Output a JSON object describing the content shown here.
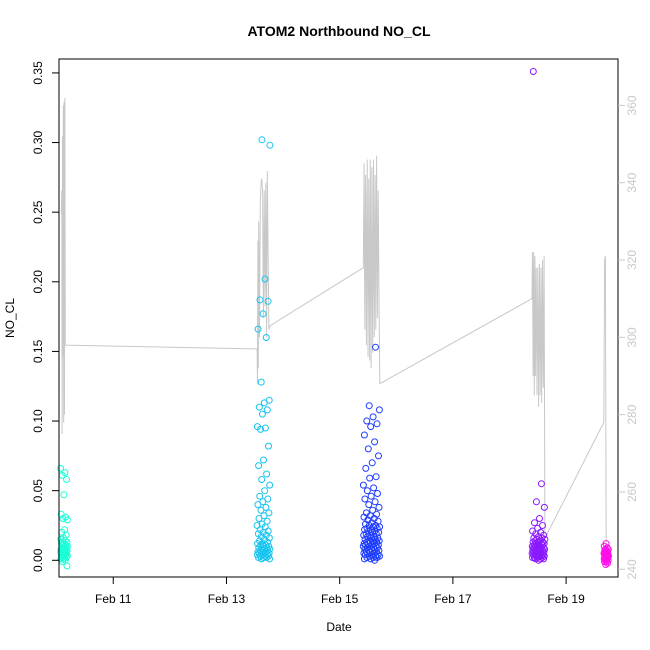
{
  "chart_data": {
    "type": "scatter",
    "title": "ATOM2 Northbound NO_CL",
    "xlabel": "Date",
    "ylabel": "NO_CL",
    "x_axis": {
      "kind": "date",
      "range": [
        "Feb 10 01:00",
        "Feb 19 22:00"
      ],
      "ticks": [
        "Feb 11",
        "Feb 13",
        "Feb 15",
        "Feb 17",
        "Feb 19"
      ]
    },
    "y_axis": {
      "range": [
        -0.012,
        0.36
      ],
      "ticks": [
        "0.00",
        "0.05",
        "0.10",
        "0.15",
        "0.20",
        "0.25",
        "0.30",
        "0.35"
      ]
    },
    "y2_axis": {
      "range": [
        238,
        372
      ],
      "ticks": [
        "240",
        "260",
        "280",
        "300",
        "320",
        "340",
        "360"
      ],
      "color": "#c8c8c8"
    },
    "grid": false,
    "legend": "none",
    "marker": "open-circle",
    "point_colors": {
      "flight1": "#1affd5",
      "flight2": "#19c4f0",
      "flight3": "#1f3dff",
      "flight4": "#8b19ff",
      "flight5": "#ff0fea"
    },
    "line_series": {
      "axis": "y2",
      "color": "#c8c8c8",
      "points": [
        [
          "Feb 10 02:00",
          332
        ],
        [
          "Feb 10 02:10",
          338
        ],
        [
          "Feb 10 02:20",
          275
        ],
        [
          "Feb 10 02:30",
          352
        ],
        [
          "Feb 10 02:40",
          295
        ],
        [
          "Feb 10 02:50",
          360
        ],
        [
          "Feb 10 03:00",
          278
        ],
        [
          "Feb 10 03:10",
          361
        ],
        [
          "Feb 10 03:20",
          280
        ],
        [
          "Feb 10 03:30",
          362
        ],
        [
          "Feb 10 03:40",
          298
        ],
        [
          "Feb 13 13:00",
          297
        ],
        [
          "Feb 13 13:10",
          288
        ],
        [
          "Feb 13 13:20",
          325
        ],
        [
          "Feb 13 13:30",
          292
        ],
        [
          "Feb 13 13:40",
          330
        ],
        [
          "Feb 13 14:00",
          300
        ],
        [
          "Feb 13 14:20",
          335
        ],
        [
          "Feb 13 14:40",
          340
        ],
        [
          "Feb 13 15:00",
          341
        ],
        [
          "Feb 13 15:20",
          338
        ],
        [
          "Feb 13 15:40",
          305
        ],
        [
          "Feb 13 16:00",
          338
        ],
        [
          "Feb 13 16:20",
          308
        ],
        [
          "Feb 13 16:40",
          340
        ],
        [
          "Feb 13 17:00",
          300
        ],
        [
          "Feb 13 17:20",
          343
        ],
        [
          "Feb 13 18:00",
          302
        ],
        [
          "Feb 13 18:30",
          303
        ],
        [
          "Feb 15 10:00",
          318
        ],
        [
          "Feb 15 10:20",
          345
        ],
        [
          "Feb 15 10:40",
          302
        ],
        [
          "Feb 15 11:00",
          342
        ],
        [
          "Feb 15 11:20",
          298
        ],
        [
          "Feb 15 11:40",
          346
        ],
        [
          "Feb 15 12:00",
          295
        ],
        [
          "Feb 15 12:20",
          341
        ],
        [
          "Feb 15 12:40",
          294
        ],
        [
          "Feb 15 13:00",
          346
        ],
        [
          "Feb 15 13:20",
          292
        ],
        [
          "Feb 15 13:40",
          344
        ],
        [
          "Feb 15 14:00",
          296
        ],
        [
          "Feb 15 14:20",
          346
        ],
        [
          "Feb 15 14:40",
          300
        ],
        [
          "Feb 15 15:00",
          342
        ],
        [
          "Feb 15 15:20",
          302
        ],
        [
          "Feb 15 15:40",
          347
        ],
        [
          "Feb 15 16:00",
          305
        ],
        [
          "Feb 15 16:20",
          338
        ],
        [
          "Feb 15 16:40",
          310
        ],
        [
          "Feb 15 17:00",
          288
        ],
        [
          "Feb 18 09:30",
          310
        ],
        [
          "Feb 18 09:45",
          322
        ],
        [
          "Feb 18 10:00",
          290
        ],
        [
          "Feb 18 10:15",
          322
        ],
        [
          "Feb 18 10:30",
          285
        ],
        [
          "Feb 18 10:45",
          321
        ],
        [
          "Feb 18 11:00",
          290
        ],
        [
          "Feb 18 11:20",
          318
        ],
        [
          "Feb 18 11:40",
          285
        ],
        [
          "Feb 18 12:00",
          318
        ],
        [
          "Feb 18 12:20",
          282
        ],
        [
          "Feb 18 12:40",
          319
        ],
        [
          "Feb 18 13:00",
          285
        ],
        [
          "Feb 18 13:20",
          318
        ],
        [
          "Feb 18 13:40",
          283
        ],
        [
          "Feb 18 14:00",
          320
        ],
        [
          "Feb 18 14:20",
          287
        ],
        [
          "Feb 18 14:40",
          321
        ],
        [
          "Feb 18 15:00",
          248
        ],
        [
          "Feb 19 16:00",
          278
        ],
        [
          "Feb 19 16:20",
          320
        ],
        [
          "Feb 19 16:40",
          321
        ],
        [
          "Feb 19 17:00",
          242
        ]
      ]
    },
    "scatter_series": [
      {
        "color_key": "flight1",
        "x_range": [
          "Feb 10 01:40",
          "Feb 10 04:40"
        ],
        "y_values": [
          0.066,
          0.063,
          0.061,
          0.058,
          0.047,
          0.033,
          0.031,
          0.03,
          0.029,
          0.022,
          0.02,
          0.018,
          0.016,
          0.015,
          0.014,
          0.013,
          0.013,
          0.012,
          0.012,
          0.011,
          0.011,
          0.01,
          0.01,
          0.009,
          0.009,
          0.009,
          0.008,
          0.008,
          0.008,
          0.007,
          0.007,
          0.007,
          0.006,
          0.006,
          0.006,
          0.005,
          0.005,
          0.005,
          0.004,
          0.004,
          0.004,
          0.003,
          0.003,
          0.003,
          0.002,
          0.002,
          0.001,
          0.001,
          0.0,
          -0.001,
          -0.004
        ]
      },
      {
        "color_key": "flight2",
        "x_range": [
          "Feb 13 13:00",
          "Feb 13 18:30"
        ],
        "y_values": [
          0.302,
          0.298,
          0.202,
          0.187,
          0.186,
          0.177,
          0.166,
          0.16,
          0.128,
          0.115,
          0.113,
          0.11,
          0.108,
          0.105,
          0.096,
          0.095,
          0.094,
          0.082,
          0.072,
          0.068,
          0.062,
          0.058,
          0.054,
          0.05,
          0.046,
          0.044,
          0.042,
          0.04,
          0.038,
          0.036,
          0.034,
          0.032,
          0.03,
          0.028,
          0.026,
          0.025,
          0.024,
          0.022,
          0.021,
          0.02,
          0.019,
          0.018,
          0.017,
          0.016,
          0.015,
          0.014,
          0.013,
          0.012,
          0.012,
          0.011,
          0.011,
          0.01,
          0.01,
          0.009,
          0.009,
          0.008,
          0.008,
          0.008,
          0.007,
          0.007,
          0.007,
          0.006,
          0.006,
          0.006,
          0.005,
          0.005,
          0.005,
          0.004,
          0.004,
          0.004,
          0.003,
          0.003,
          0.003,
          0.002,
          0.002,
          0.002,
          0.001,
          0.001
        ]
      },
      {
        "color_key": "flight3",
        "x_range": [
          "Feb 15 10:00",
          "Feb 15 17:00"
        ],
        "y_values": [
          0.153,
          0.111,
          0.108,
          0.103,
          0.1,
          0.098,
          0.096,
          0.09,
          0.085,
          0.08,
          0.075,
          0.07,
          0.066,
          0.06,
          0.059,
          0.054,
          0.052,
          0.05,
          0.048,
          0.046,
          0.044,
          0.042,
          0.04,
          0.038,
          0.036,
          0.034,
          0.033,
          0.032,
          0.031,
          0.03,
          0.029,
          0.028,
          0.027,
          0.026,
          0.025,
          0.025,
          0.024,
          0.024,
          0.023,
          0.023,
          0.022,
          0.022,
          0.021,
          0.021,
          0.02,
          0.02,
          0.019,
          0.019,
          0.018,
          0.018,
          0.017,
          0.017,
          0.016,
          0.016,
          0.015,
          0.015,
          0.014,
          0.014,
          0.014,
          0.013,
          0.013,
          0.013,
          0.012,
          0.012,
          0.012,
          0.011,
          0.011,
          0.011,
          0.01,
          0.01,
          0.01,
          0.009,
          0.009,
          0.009,
          0.008,
          0.008,
          0.008,
          0.007,
          0.007,
          0.007,
          0.006,
          0.006,
          0.006,
          0.005,
          0.005,
          0.005,
          0.004,
          0.004,
          0.004,
          0.003,
          0.003,
          0.003,
          0.002,
          0.002,
          0.002,
          0.001,
          0.001,
          0.0
        ]
      },
      {
        "color_key": "flight4",
        "x_range": [
          "Feb 18 09:30",
          "Feb 18 15:00"
        ],
        "y_values": [
          0.351,
          0.055,
          0.042,
          0.038,
          0.03,
          0.027,
          0.025,
          0.023,
          0.021,
          0.02,
          0.019,
          0.018,
          0.017,
          0.016,
          0.016,
          0.015,
          0.015,
          0.014,
          0.014,
          0.013,
          0.013,
          0.013,
          0.012,
          0.012,
          0.012,
          0.011,
          0.011,
          0.011,
          0.01,
          0.01,
          0.01,
          0.01,
          0.009,
          0.009,
          0.009,
          0.009,
          0.008,
          0.008,
          0.008,
          0.008,
          0.007,
          0.007,
          0.007,
          0.007,
          0.006,
          0.006,
          0.006,
          0.006,
          0.005,
          0.005,
          0.005,
          0.005,
          0.004,
          0.004,
          0.004,
          0.004,
          0.003,
          0.003,
          0.003,
          0.003,
          0.002,
          0.002,
          0.002,
          0.002,
          0.001,
          0.001,
          0.001,
          0.0
        ]
      },
      {
        "color_key": "flight5",
        "x_range": [
          "Feb 19 16:00",
          "Feb 19 18:00"
        ],
        "y_values": [
          0.012,
          0.01,
          0.009,
          0.008,
          0.008,
          0.007,
          0.007,
          0.006,
          0.006,
          0.005,
          0.005,
          0.005,
          0.004,
          0.004,
          0.004,
          0.003,
          0.003,
          0.003,
          0.002,
          0.002,
          0.002,
          0.001,
          0.001,
          0.001,
          0.0,
          0.0,
          -0.001,
          -0.001,
          -0.002,
          -0.003
        ]
      }
    ]
  }
}
